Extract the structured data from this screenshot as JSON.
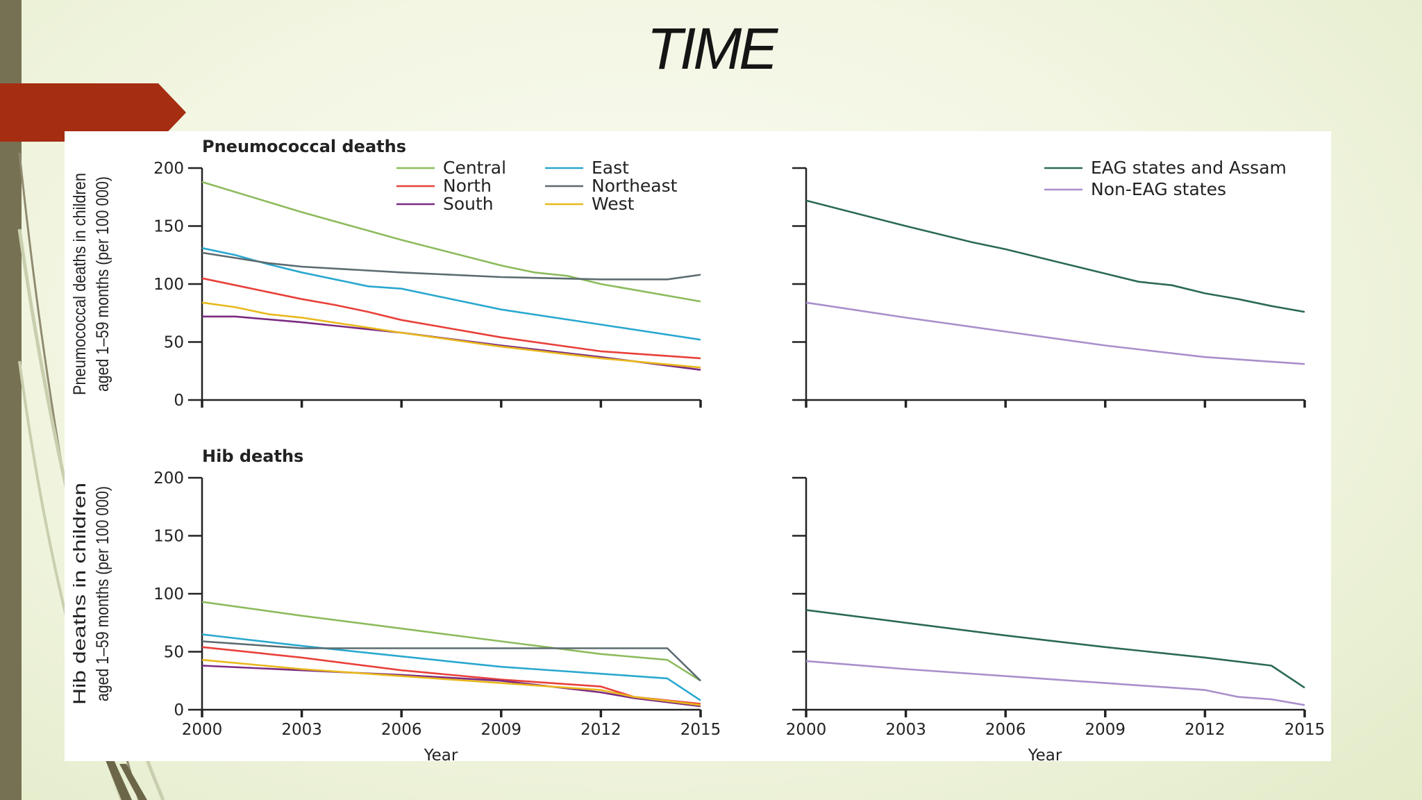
{
  "slide": {
    "title": "TIME",
    "colors": {
      "accent_red": "#a52d12",
      "side_bar": "#777153",
      "background": "#eef3dc"
    }
  },
  "chart_data": [
    {
      "type": "line",
      "panel": "top-left",
      "title": "Pneumococcal deaths",
      "ylabel": "Pneumococcal deaths in children aged 1–59 months (per 100 000)",
      "xlabel": "",
      "xlim": [
        2000,
        2015
      ],
      "ylim": [
        0,
        200
      ],
      "x_ticks": [
        "2000",
        "2003",
        "2006",
        "2009",
        "2012",
        "2015"
      ],
      "y_ticks": [
        "0",
        "50",
        "100",
        "150",
        "200"
      ],
      "legend_position": "top-right",
      "series": [
        {
          "name": "Central",
          "color": "#8cbb5c",
          "x": [
            2000,
            2003,
            2006,
            2009,
            2010,
            2011,
            2012,
            2015
          ],
          "values": [
            188,
            162,
            138,
            116,
            110,
            107,
            100,
            85
          ]
        },
        {
          "name": "North",
          "color": "#e8403a",
          "x": [
            2000,
            2001,
            2002,
            2003,
            2004,
            2005,
            2006,
            2009,
            2012,
            2015
          ],
          "values": [
            105,
            99,
            93,
            87,
            82,
            76,
            69,
            54,
            42,
            36
          ]
        },
        {
          "name": "South",
          "color": "#7b2a83",
          "x": [
            2000,
            2001,
            2003,
            2006,
            2009,
            2012,
            2015
          ],
          "values": [
            72,
            72,
            67,
            58,
            47,
            37,
            26
          ]
        },
        {
          "name": "East",
          "color": "#2aa8cf",
          "x": [
            2000,
            2001,
            2002,
            2003,
            2004,
            2005,
            2006,
            2009,
            2012,
            2015
          ],
          "values": [
            131,
            125,
            117,
            110,
            104,
            98,
            96,
            78,
            65,
            52
          ]
        },
        {
          "name": "Northeast",
          "color": "#5c6b70",
          "x": [
            2000,
            2002,
            2003,
            2006,
            2009,
            2012,
            2014,
            2015
          ],
          "values": [
            127,
            118,
            115,
            110,
            106,
            104,
            104,
            108
          ]
        },
        {
          "name": "West",
          "color": "#e8b81c",
          "x": [
            2000,
            2001,
            2002,
            2003,
            2006,
            2009,
            2012,
            2015
          ],
          "values": [
            84,
            80,
            74,
            71,
            58,
            46,
            36,
            28
          ]
        }
      ]
    },
    {
      "type": "line",
      "panel": "top-right",
      "title": "",
      "xlim": [
        2000,
        2015
      ],
      "ylim": [
        0,
        200
      ],
      "x_ticks": [
        "2000",
        "2003",
        "2006",
        "2009",
        "2012",
        "2015"
      ],
      "legend_position": "top-right",
      "series": [
        {
          "name": "EAG states and Assam",
          "color": "#2a6a52",
          "x": [
            2000,
            2003,
            2005,
            2006,
            2009,
            2010,
            2011,
            2012,
            2013,
            2014,
            2015
          ],
          "values": [
            172,
            150,
            136,
            130,
            109,
            102,
            99,
            92,
            87,
            81,
            76
          ]
        },
        {
          "name": "Non-EAG states",
          "color": "#a98fcc",
          "x": [
            2000,
            2003,
            2006,
            2009,
            2012,
            2015
          ],
          "values": [
            84,
            71,
            59,
            47,
            37,
            31
          ]
        }
      ]
    },
    {
      "type": "line",
      "panel": "bottom-left",
      "title": "Hib deaths",
      "ylabel": "Hib deaths in children aged 1–59 months (per 100 000)",
      "xlabel": "Year",
      "xlim": [
        2000,
        2015
      ],
      "ylim": [
        0,
        200
      ],
      "x_ticks": [
        "2000",
        "2003",
        "2006",
        "2009",
        "2012",
        "2015"
      ],
      "y_ticks": [
        "0",
        "50",
        "100",
        "150",
        "200"
      ],
      "series": [
        {
          "name": "Central",
          "color": "#8cbb5c",
          "x": [
            2000,
            2003,
            2006,
            2009,
            2012,
            2014,
            2015
          ],
          "values": [
            93,
            81,
            70,
            59,
            48,
            43,
            25
          ]
        },
        {
          "name": "North",
          "color": "#e8403a",
          "x": [
            2000,
            2003,
            2006,
            2009,
            2012,
            2013,
            2014,
            2015
          ],
          "values": [
            54,
            45,
            34,
            26,
            20,
            11,
            8,
            5
          ]
        },
        {
          "name": "South",
          "color": "#7b2a83",
          "x": [
            2000,
            2003,
            2006,
            2009,
            2012,
            2013,
            2015
          ],
          "values": [
            38,
            34,
            30,
            25,
            15,
            10,
            3
          ]
        },
        {
          "name": "East",
          "color": "#2aa8cf",
          "x": [
            2000,
            2003,
            2006,
            2009,
            2012,
            2014,
            2015
          ],
          "values": [
            65,
            55,
            46,
            37,
            31,
            27,
            8
          ]
        },
        {
          "name": "Northeast",
          "color": "#5c6b70",
          "x": [
            2000,
            2003,
            2006,
            2009,
            2012,
            2014,
            2015
          ],
          "values": [
            59,
            53,
            53,
            53,
            53,
            53,
            25
          ]
        },
        {
          "name": "West",
          "color": "#e8b81c",
          "x": [
            2000,
            2003,
            2006,
            2009,
            2012,
            2013,
            2015
          ],
          "values": [
            43,
            35,
            29,
            23,
            17,
            11,
            4
          ]
        }
      ]
    },
    {
      "type": "line",
      "panel": "bottom-right",
      "title": "",
      "xlabel": "Year",
      "xlim": [
        2000,
        2015
      ],
      "ylim": [
        0,
        200
      ],
      "x_ticks": [
        "2000",
        "2003",
        "2006",
        "2009",
        "2012",
        "2015"
      ],
      "series": [
        {
          "name": "EAG states and Assam",
          "color": "#2a6a52",
          "x": [
            2000,
            2003,
            2006,
            2009,
            2012,
            2014,
            2015
          ],
          "values": [
            86,
            75,
            64,
            54,
            45,
            38,
            19
          ]
        },
        {
          "name": "Non-EAG states",
          "color": "#a98fcc",
          "x": [
            2000,
            2003,
            2006,
            2009,
            2012,
            2013,
            2014,
            2015
          ],
          "values": [
            42,
            35,
            29,
            23,
            17,
            11,
            9,
            4
          ]
        }
      ]
    }
  ]
}
